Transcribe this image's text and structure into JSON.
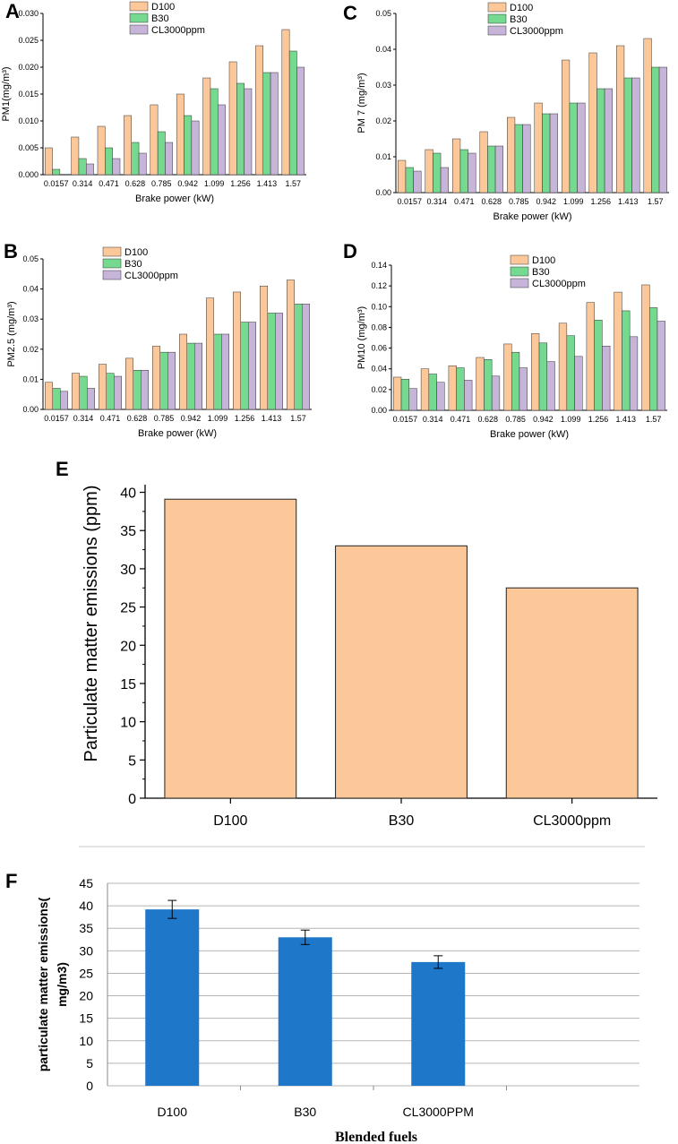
{
  "colors": {
    "D100": "#fdc899",
    "B30": "#75d98f",
    "CL3000ppm": "#c7b5d9",
    "E_bar": "#fdc899",
    "F_bar": "#1f77c9",
    "grid": "#b5b5b5"
  },
  "chart_data": [
    {
      "panel": "A",
      "type": "bar",
      "ylabel": "PM1(mg/m³)",
      "xlabel": "Brake power (kW)",
      "categories": [
        "0.0157",
        "0.314",
        "0.471",
        "0.628",
        "0.785",
        "0.942",
        "1.099",
        "1.256",
        "1.413",
        "1.57"
      ],
      "ylim": [
        0,
        0.03
      ],
      "yticks": [
        "0.000",
        "0.005",
        "0.010",
        "0.015",
        "0.020",
        "0.025",
        "0.030"
      ],
      "series": [
        {
          "name": "D100",
          "values": [
            0.005,
            0.007,
            0.009,
            0.011,
            0.013,
            0.015,
            0.018,
            0.021,
            0.024,
            0.027
          ]
        },
        {
          "name": "B30",
          "values": [
            0.001,
            0.003,
            0.005,
            0.006,
            0.008,
            0.011,
            0.016,
            0.017,
            0.019,
            0.023
          ]
        },
        {
          "name": "CL3000ppm",
          "values": [
            0.0,
            0.002,
            0.003,
            0.004,
            0.006,
            0.01,
            0.013,
            0.016,
            0.019,
            0.02
          ]
        }
      ]
    },
    {
      "panel": "C",
      "type": "bar",
      "ylabel": "PM 7 (mg/m³)",
      "xlabel": "Brake power (kW)",
      "categories": [
        "0.0157",
        "0.314",
        "0.471",
        "0.628",
        "0.785",
        "0.942",
        "1.099",
        "1.256",
        "1.413",
        "1.57"
      ],
      "ylim": [
        0,
        0.05
      ],
      "yticks": [
        "0.00",
        "0.01",
        "0.02",
        "0.03",
        "0.04",
        "0.05"
      ],
      "series": [
        {
          "name": "D100",
          "values": [
            0.009,
            0.012,
            0.015,
            0.017,
            0.021,
            0.025,
            0.037,
            0.039,
            0.041,
            0.043
          ]
        },
        {
          "name": "B30",
          "values": [
            0.007,
            0.011,
            0.012,
            0.013,
            0.019,
            0.022,
            0.025,
            0.029,
            0.032,
            0.035
          ]
        },
        {
          "name": "CL3000ppm",
          "values": [
            0.006,
            0.007,
            0.011,
            0.013,
            0.019,
            0.022,
            0.025,
            0.029,
            0.032,
            0.035
          ]
        }
      ]
    },
    {
      "panel": "B",
      "type": "bar",
      "ylabel": "PM2.5 (mg/m³)",
      "xlabel": "Brake power (kW)",
      "categories": [
        "0.0157",
        "0.314",
        "0.471",
        "0.628",
        "0.785",
        "0.942",
        "1.099",
        "1.256",
        "1.413",
        "1.57"
      ],
      "ylim": [
        0,
        0.05
      ],
      "yticks": [
        "0.00",
        "0.01",
        "0.02",
        "0.03",
        "0.04",
        "0.05"
      ],
      "series": [
        {
          "name": "D100",
          "values": [
            0.009,
            0.012,
            0.015,
            0.017,
            0.021,
            0.025,
            0.037,
            0.039,
            0.041,
            0.043
          ]
        },
        {
          "name": "B30",
          "values": [
            0.007,
            0.011,
            0.012,
            0.013,
            0.019,
            0.022,
            0.025,
            0.029,
            0.032,
            0.035
          ]
        },
        {
          "name": "CL3000ppm",
          "values": [
            0.006,
            0.007,
            0.011,
            0.013,
            0.019,
            0.022,
            0.025,
            0.029,
            0.032,
            0.035
          ]
        }
      ]
    },
    {
      "panel": "D",
      "type": "bar",
      "ylabel": "PM10 (mg/m³)",
      "xlabel": "Brake power (kW)",
      "categories": [
        "0.0157",
        "0.314",
        "0.471",
        "0.628",
        "0.785",
        "0.942",
        "1.099",
        "1.256",
        "1.413",
        "1.57"
      ],
      "ylim": [
        0,
        0.14
      ],
      "yticks": [
        "0.00",
        "0.02",
        "0.04",
        "0.06",
        "0.08",
        "0.10",
        "0.12",
        "0.14"
      ],
      "series": [
        {
          "name": "D100",
          "values": [
            0.032,
            0.04,
            0.043,
            0.051,
            0.064,
            0.074,
            0.084,
            0.104,
            0.114,
            0.121
          ]
        },
        {
          "name": "B30",
          "values": [
            0.03,
            0.035,
            0.041,
            0.049,
            0.056,
            0.065,
            0.072,
            0.087,
            0.096,
            0.099
          ]
        },
        {
          "name": "CL3000ppm",
          "values": [
            0.021,
            0.027,
            0.029,
            0.033,
            0.041,
            0.047,
            0.052,
            0.062,
            0.071,
            0.086
          ]
        }
      ]
    },
    {
      "panel": "E",
      "type": "bar",
      "ylabel": "Particulate matter emissions (ppm)",
      "xlabel": "",
      "categories": [
        "D100",
        "B30",
        "CL3000ppm"
      ],
      "values": [
        39.1,
        33.0,
        27.5
      ],
      "ylim": [
        0,
        41
      ],
      "yticks": [
        "0",
        "5",
        "10",
        "15",
        "20",
        "25",
        "30",
        "35",
        "40"
      ]
    },
    {
      "panel": "F",
      "type": "bar",
      "ylabel_lines": [
        "particulate matter emissions(",
        "mg/m3)"
      ],
      "xlabel": "Blended  fuels",
      "categories": [
        "D100",
        "B30",
        "CL3000PPM"
      ],
      "values": [
        39.2,
        33.0,
        27.5
      ],
      "errors": [
        2.0,
        1.6,
        1.4
      ],
      "ylim": [
        0,
        45
      ],
      "yticks": [
        "0",
        "5",
        "10",
        "15",
        "20",
        "25",
        "30",
        "35",
        "40",
        "45"
      ]
    }
  ]
}
